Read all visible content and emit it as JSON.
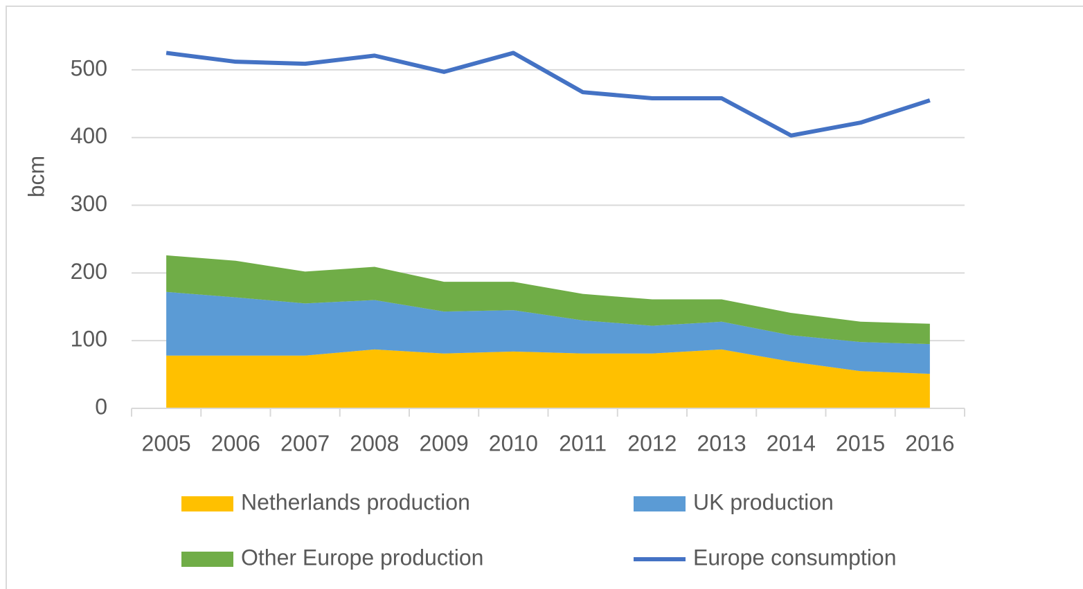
{
  "chart_data": {
    "type": "area",
    "stacked": true,
    "y_label": "bcm",
    "categories": [
      "2005",
      "2006",
      "2007",
      "2008",
      "2009",
      "2010",
      "2011",
      "2012",
      "2013",
      "2014",
      "2015",
      "2016"
    ],
    "series": [
      {
        "name": "Netherlands production",
        "color": "#ffc000",
        "values": [
          78,
          78,
          78,
          87,
          81,
          84,
          81,
          81,
          87,
          69,
          55,
          51
        ]
      },
      {
        "name": "UK production",
        "color": "#5b9bd5",
        "values": [
          94,
          86,
          77,
          73,
          62,
          61,
          49,
          41,
          41,
          39,
          43,
          44
        ]
      },
      {
        "name": "Other Europe production",
        "color": "#70ad47",
        "values": [
          54,
          54,
          47,
          49,
          44,
          42,
          39,
          39,
          33,
          33,
          30,
          30
        ]
      },
      {
        "name": "Europe consumption",
        "color": "#4472c4",
        "type": "line",
        "values": [
          525,
          512,
          509,
          521,
          497,
          525,
          467,
          458,
          458,
          403,
          422,
          455
        ]
      }
    ],
    "ylim": [
      0,
      550
    ],
    "yticks": [
      0,
      100,
      200,
      300,
      400,
      500
    ],
    "grid": true,
    "legend": "bottom"
  }
}
